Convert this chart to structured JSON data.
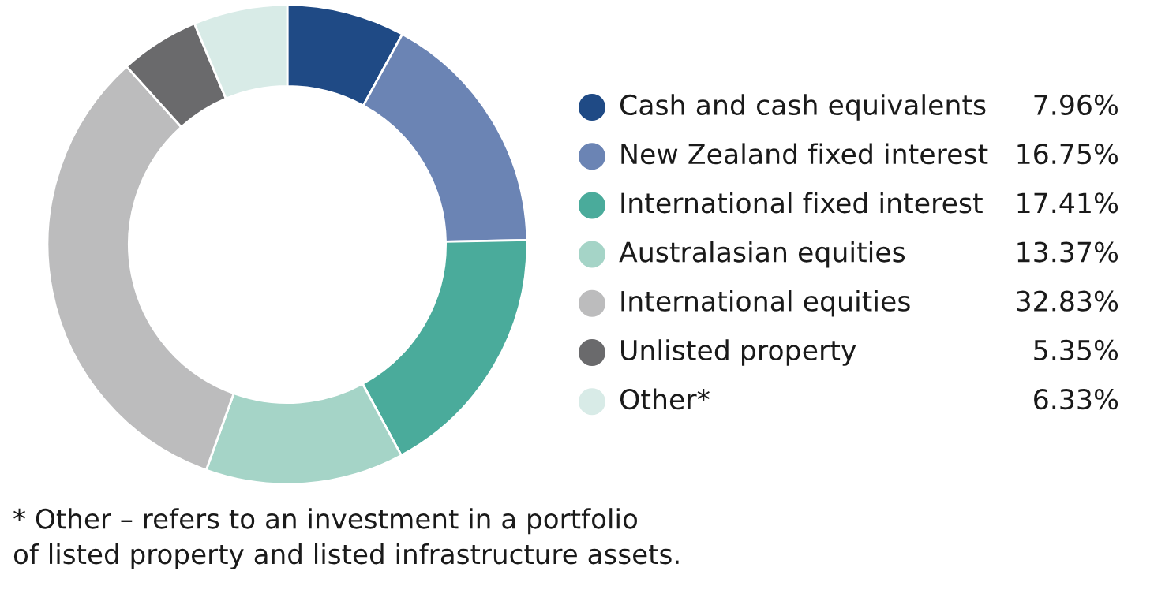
{
  "chart_data": {
    "type": "donut",
    "categories": [
      "Cash and cash equivalents",
      "New Zealand fixed interest",
      "International fixed interest",
      "Australasian equities",
      "International equities",
      "Unlisted property",
      "Other*"
    ],
    "values": [
      7.96,
      16.75,
      17.41,
      13.37,
      32.83,
      5.35,
      6.33
    ],
    "colors": [
      "#1f4a85",
      "#6b84b4",
      "#4aab9b",
      "#a5d4c7",
      "#bcbcbd",
      "#6a6a6c",
      "#d8ebe7"
    ],
    "value_labels": [
      "7.96%",
      "16.75%",
      "17.41%",
      "13.37%",
      "32.83%",
      "5.35%",
      "6.33%"
    ],
    "legend": "right",
    "annotations": [
      "* Other – refers to an investment in a portfolio\nof listed property and listed infrastructure assets."
    ]
  }
}
